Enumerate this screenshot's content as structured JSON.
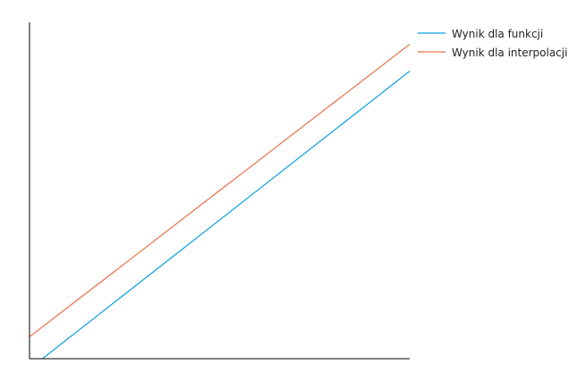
{
  "chart_data": {
    "type": "line",
    "title": "",
    "xlabel": "",
    "ylabel": "",
    "grid": false,
    "legend_position": "top-right, outside plot",
    "axes_ticks_visible": false,
    "xlim": [
      0,
      10
    ],
    "ylim": [
      0,
      10
    ],
    "series": [
      {
        "name": "Wynik dla funkcji",
        "color": "#0a9ee0",
        "x": [
          0,
          10
        ],
        "y": [
          -0.3,
          8.55
        ]
      },
      {
        "name": "Wynik dla interpolacji",
        "color": "#e8734a",
        "x": [
          0,
          10
        ],
        "y": [
          0.65,
          9.35
        ]
      }
    ]
  }
}
